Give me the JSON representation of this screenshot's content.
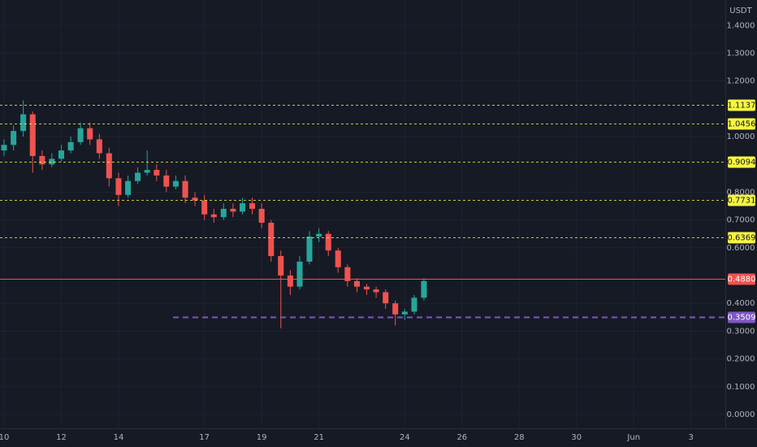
{
  "chart_data": {
    "type": "candlestick",
    "unit": "USDT",
    "up_color": "#26a69a",
    "down_color": "#ef5350",
    "x": [
      0,
      0.33,
      0.67,
      1,
      1.33,
      1.67,
      2,
      2.33,
      2.67,
      3,
      3.33,
      3.67,
      4,
      4.33,
      4.67,
      5,
      5.33,
      5.67,
      6,
      6.33,
      6.67,
      7,
      7.33,
      7.67,
      8,
      8.33,
      8.67,
      9,
      9.33,
      9.67,
      10,
      10.33,
      10.67,
      11,
      11.33,
      11.67,
      12,
      12.33,
      12.67,
      13,
      13.33,
      13.67,
      14,
      14.33,
      14.67
    ],
    "open": [
      0.95,
      0.97,
      1.02,
      1.08,
      0.93,
      0.9,
      0.92,
      0.95,
      0.98,
      1.03,
      0.99,
      0.94,
      0.85,
      0.79,
      0.84,
      0.87,
      0.88,
      0.86,
      0.82,
      0.84,
      0.78,
      0.77,
      0.72,
      0.71,
      0.74,
      0.73,
      0.76,
      0.74,
      0.69,
      0.57,
      0.5,
      0.46,
      0.55,
      0.64,
      0.65,
      0.59,
      0.53,
      0.48,
      0.46,
      0.45,
      0.44,
      0.4,
      0.36,
      0.37,
      0.42
    ],
    "high": [
      0.99,
      1.04,
      1.13,
      1.09,
      0.95,
      0.94,
      0.97,
      1.0,
      1.05,
      1.05,
      1.01,
      0.96,
      0.87,
      0.86,
      0.89,
      0.95,
      0.9,
      0.88,
      0.86,
      0.86,
      0.8,
      0.79,
      0.74,
      0.76,
      0.76,
      0.78,
      0.78,
      0.76,
      0.7,
      0.59,
      0.52,
      0.57,
      0.66,
      0.67,
      0.66,
      0.6,
      0.54,
      0.49,
      0.47,
      0.46,
      0.45,
      0.41,
      0.38,
      0.43,
      0.49
    ],
    "low": [
      0.93,
      0.95,
      1.0,
      0.87,
      0.88,
      0.89,
      0.91,
      0.94,
      0.97,
      0.97,
      0.92,
      0.82,
      0.75,
      0.78,
      0.83,
      0.86,
      0.84,
      0.8,
      0.81,
      0.76,
      0.75,
      0.7,
      0.69,
      0.7,
      0.71,
      0.72,
      0.72,
      0.67,
      0.55,
      0.31,
      0.43,
      0.45,
      0.54,
      0.62,
      0.57,
      0.51,
      0.46,
      0.44,
      0.43,
      0.42,
      0.38,
      0.32,
      0.34,
      0.36,
      0.41
    ],
    "close": [
      0.97,
      1.02,
      1.08,
      0.93,
      0.9,
      0.92,
      0.95,
      0.98,
      1.03,
      0.99,
      0.94,
      0.85,
      0.79,
      0.84,
      0.87,
      0.88,
      0.86,
      0.82,
      0.84,
      0.78,
      0.77,
      0.72,
      0.71,
      0.74,
      0.73,
      0.76,
      0.74,
      0.69,
      0.57,
      0.5,
      0.46,
      0.55,
      0.64,
      0.65,
      0.59,
      0.53,
      0.48,
      0.46,
      0.45,
      0.44,
      0.4,
      0.36,
      0.37,
      0.42,
      0.48
    ],
    "xlim": [
      -0.142,
      25.2
    ],
    "xticks": [
      {
        "value": 0,
        "label": "10"
      },
      {
        "value": 2,
        "label": "12"
      },
      {
        "value": 4,
        "label": "14"
      },
      {
        "value": 7,
        "label": "17"
      },
      {
        "value": 9,
        "label": "19"
      },
      {
        "value": 11,
        "label": "21"
      },
      {
        "value": 14,
        "label": "24"
      },
      {
        "value": 16,
        "label": "26"
      },
      {
        "value": 18,
        "label": "28"
      },
      {
        "value": 20,
        "label": "30"
      },
      {
        "value": 22,
        "label": "Jun"
      },
      {
        "value": 24,
        "label": "3"
      }
    ],
    "ylim": [
      -0.0498,
      1.4914
    ],
    "yticks": [
      {
        "value": 1.4,
        "label": "1.4000"
      },
      {
        "value": 1.3,
        "label": "1.3000"
      },
      {
        "value": 1.2,
        "label": "1.2000"
      },
      {
        "value": 1.0,
        "label": "1.0000"
      },
      {
        "value": 0.8,
        "label": "0.8000"
      },
      {
        "value": 0.7,
        "label": "0.7000"
      },
      {
        "value": 0.6,
        "label": "0.6000"
      },
      {
        "value": 0.4,
        "label": "0.4000"
      },
      {
        "value": 0.3,
        "label": "0.3000"
      },
      {
        "value": 0.2,
        "label": "0.2000"
      },
      {
        "value": 0.1,
        "label": "0.1000"
      },
      {
        "value": 0,
        "label": "0.0000"
      }
    ],
    "grid": true,
    "levels": [
      {
        "value": 1.1137,
        "label": "1.1137",
        "color": "#f5f542",
        "style": "dotted"
      },
      {
        "value": 1.0456,
        "label": "1.0456",
        "color": "#f5f542",
        "style": "dotted"
      },
      {
        "value": 0.9094,
        "label": "0.9094",
        "color": "#f5f542",
        "style": "dotted"
      },
      {
        "value": 0.7731,
        "label": "0.7731",
        "color": "#f5f542",
        "style": "dotted"
      },
      {
        "value": 0.6369,
        "label": "0.6369",
        "color": "#f5f542",
        "style": "dotted"
      },
      {
        "value": 0.488,
        "label": "0.4880",
        "color": "#ef5350",
        "style": "solid"
      },
      {
        "value": 0.3509,
        "label": "0.3509",
        "color": "#7e57c2",
        "style": "dashed"
      }
    ]
  }
}
